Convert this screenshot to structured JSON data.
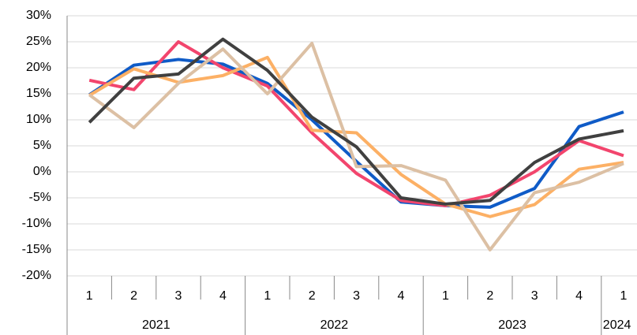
{
  "chart_data": {
    "type": "line",
    "categories": [
      "1",
      "2",
      "3",
      "4",
      "1",
      "2",
      "3",
      "4",
      "1",
      "2",
      "3",
      "4",
      "1"
    ],
    "category_groups": [
      "2021",
      "2022",
      "2023",
      "2024"
    ],
    "series": [
      {
        "color": "#0f5bc7",
        "values": [
          14.8,
          20.5,
          21.6,
          20.7,
          17.0,
          10.0,
          2.0,
          -5.8,
          -6.5,
          -6.8,
          -3.2,
          8.7,
          11.5
        ]
      },
      {
        "color": "#f2456d",
        "values": [
          17.6,
          15.8,
          25.0,
          20.0,
          16.5,
          7.5,
          -0.3,
          -5.5,
          -6.5,
          -4.5,
          0,
          6.0,
          3.1
        ]
      },
      {
        "color": "#fcb065",
        "values": [
          14.7,
          19.8,
          17.2,
          18.5,
          22.0,
          8.0,
          7.5,
          -0.5,
          -6.2,
          -8.6,
          -6.3,
          0.5,
          1.8
        ]
      },
      {
        "color": "#dcc0a4",
        "values": [
          14.8,
          8.5,
          17.0,
          23.6,
          15.0,
          24.7,
          1.0,
          1.2,
          -1.6,
          -15.0,
          -4.0,
          -2.0,
          1.6
        ]
      },
      {
        "color": "#404040",
        "values": [
          9.5,
          18.0,
          18.8,
          25.5,
          19.5,
          10.5,
          4.8,
          -5.0,
          -6.2,
          -5.5,
          1.8,
          6.3,
          7.9
        ]
      }
    ],
    "ylim": [
      -20,
      30
    ],
    "yticks": [
      {
        "value": -20,
        "label": "-20%"
      },
      {
        "value": -15,
        "label": "-15%"
      },
      {
        "value": -10,
        "label": "-10%"
      },
      {
        "value": -5,
        "label": "-5%"
      },
      {
        "value": 0,
        "label": "0%"
      },
      {
        "value": 5,
        "label": "5%"
      },
      {
        "value": 10,
        "label": "10%"
      },
      {
        "value": 15,
        "label": "15%"
      },
      {
        "value": 20,
        "label": "20%"
      },
      {
        "value": 25,
        "label": "25%"
      },
      {
        "value": 30,
        "label": "30%"
      }
    ],
    "grid": true
  }
}
